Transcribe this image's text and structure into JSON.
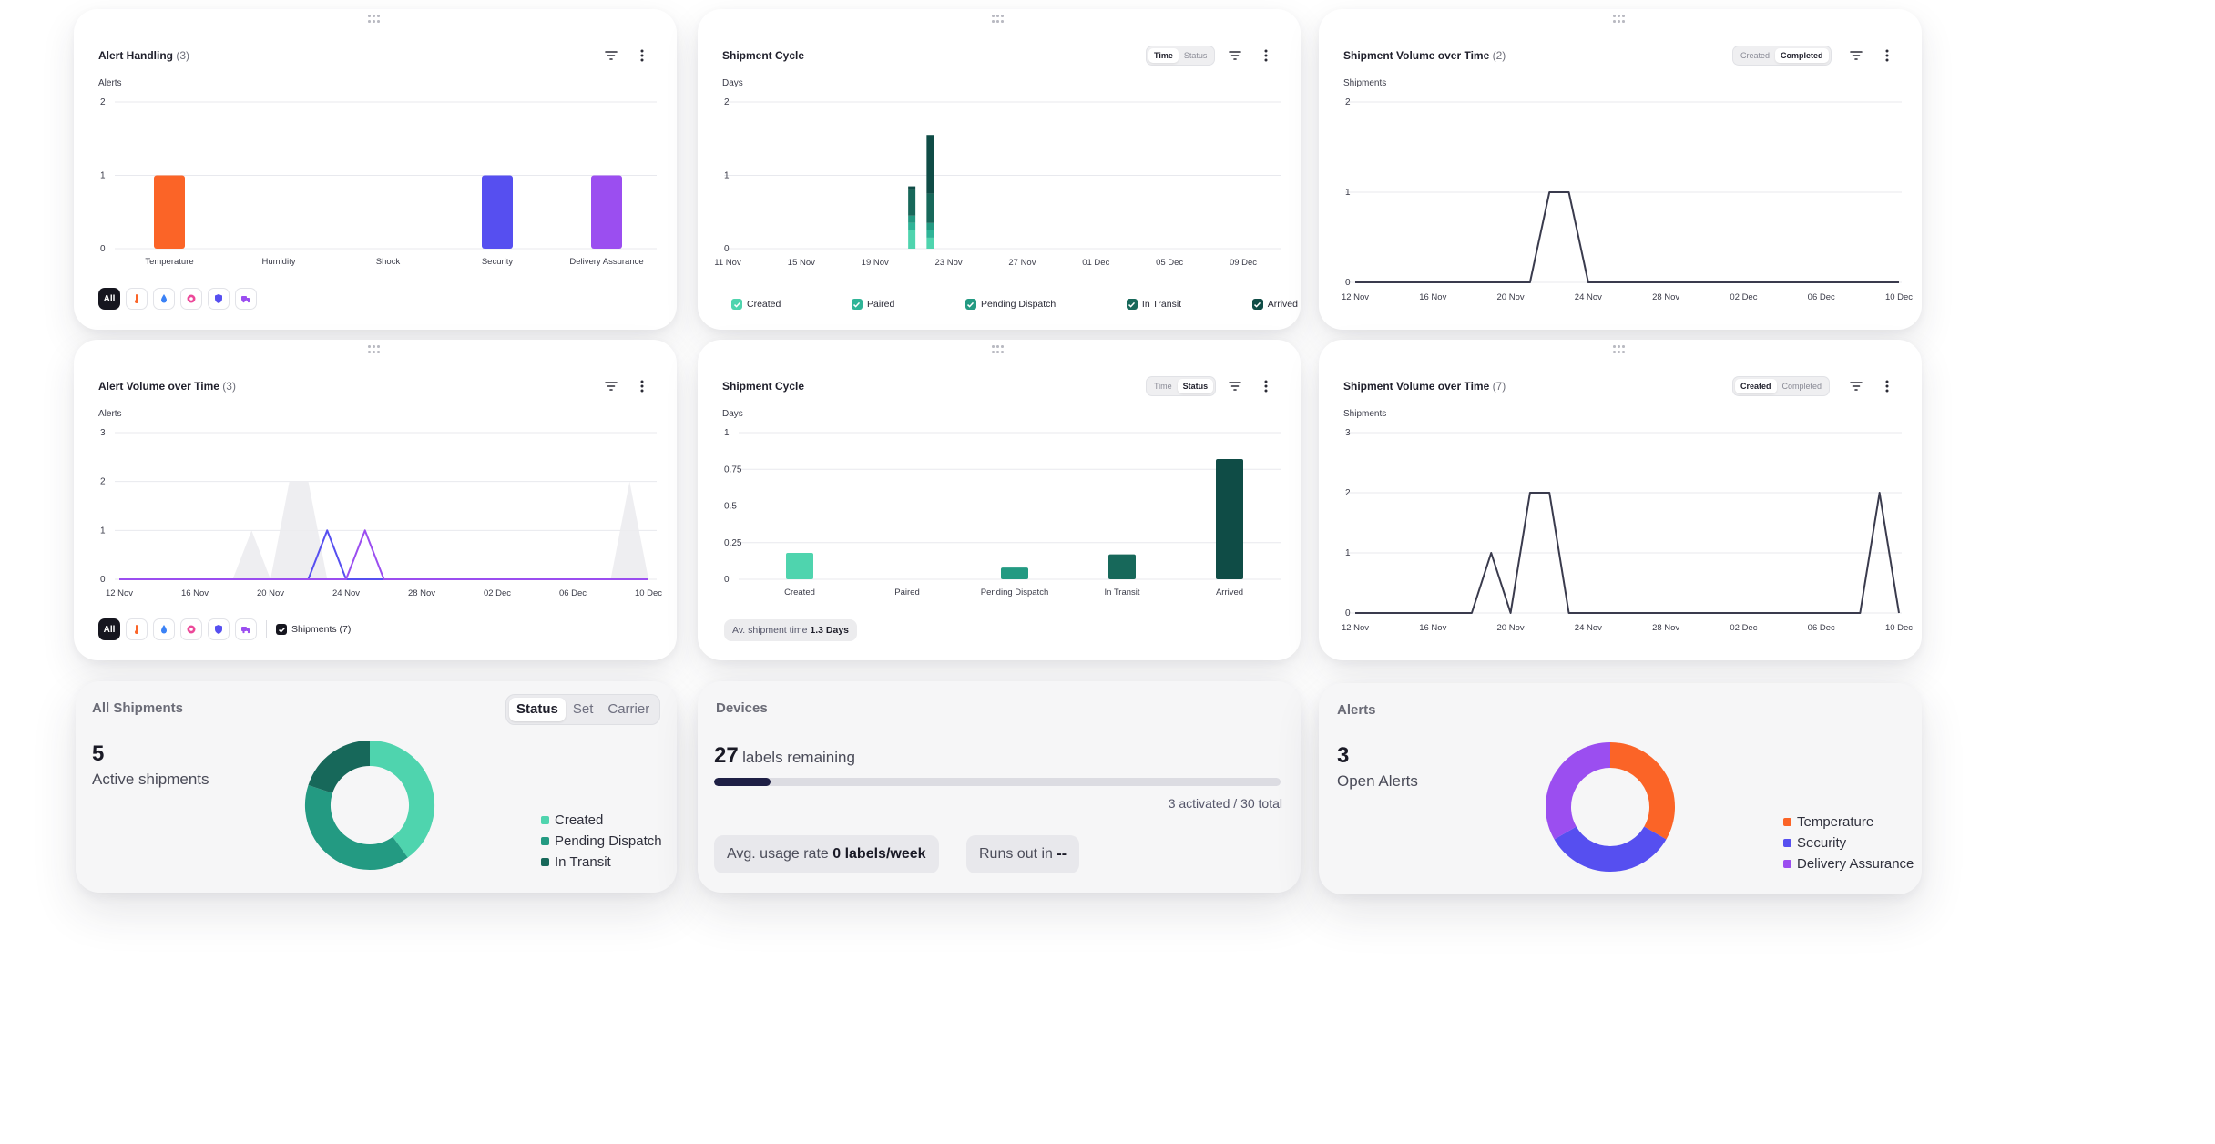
{
  "alert_handling": {
    "title": "Alert Handling",
    "count": "(3)",
    "y_label": "Alerts",
    "filter_all": "All",
    "filter_icons": [
      "thermometer-icon",
      "droplet-icon",
      "shock-icon",
      "shield-icon",
      "delivery-truck-icon"
    ]
  },
  "shipment_cycle_time": {
    "title": "Shipment Cycle",
    "toggle": [
      "Time",
      "Status"
    ],
    "toggle_active": "Time",
    "y_label": "Days",
    "legend": [
      "Created",
      "Paired",
      "Pending Dispatch",
      "In Transit",
      "Arrived"
    ]
  },
  "shipment_volume_completed": {
    "title": "Shipment Volume over Time",
    "count": "(2)",
    "toggle": [
      "Created",
      "Completed"
    ],
    "toggle_active": "Completed",
    "y_label": "Shipments"
  },
  "alert_volume": {
    "title": "Alert Volume over Time",
    "count": "(3)",
    "y_label": "Alerts",
    "filter_all": "All",
    "filter_icons": [
      "thermometer-icon",
      "droplet-icon",
      "shock-icon",
      "shield-icon",
      "delivery-truck-icon"
    ],
    "shipments_toggle": "Shipments (7)"
  },
  "shipment_cycle_status": {
    "title": "Shipment Cycle",
    "toggle": [
      "Time",
      "Status"
    ],
    "toggle_active": "Status",
    "y_label": "Days",
    "avg_label": "Av. shipment time",
    "avg_value": "1.3 Days"
  },
  "shipment_volume_created": {
    "title": "Shipment Volume over Time",
    "count": "(7)",
    "toggle": [
      "Created",
      "Completed"
    ],
    "toggle_active": "Created",
    "y_label": "Shipments"
  },
  "all_shipments": {
    "title": "All Shipments",
    "toggle": [
      "Status",
      "Set",
      "Carrier"
    ],
    "toggle_active": "Status",
    "value": "5",
    "label": "Active shipments",
    "legend": [
      {
        "label": "Created",
        "color": "#4fd4ae"
      },
      {
        "label": "Pending Dispatch",
        "color": "#239a82"
      },
      {
        "label": "In Transit",
        "color": "#17685a"
      }
    ],
    "donut": [
      2,
      2,
      1
    ]
  },
  "devices": {
    "title": "Devices",
    "remaining_value": "27",
    "remaining_label": "labels remaining",
    "progress": 0.1,
    "summary": "3 activated / 30 total",
    "usage_label": "Avg. usage rate",
    "usage_value": "0 labels/week",
    "runs_out_label": "Runs out in",
    "runs_out_value": "--"
  },
  "alerts_kpi": {
    "title": "Alerts",
    "value": "3",
    "label": "Open Alerts",
    "legend": [
      {
        "label": "Temperature",
        "color": "#fb6427"
      },
      {
        "label": "Security",
        "color": "#564ff0"
      },
      {
        "label": "Delivery Assurance",
        "color": "#9b4ef0"
      }
    ],
    "donut": [
      1,
      1,
      1
    ]
  },
  "colors": {
    "temperature": "#fb6427",
    "security": "#564ff0",
    "delivery": "#9b4ef0",
    "created": "#4fd4ae",
    "paired": "#2fb497",
    "pending": "#239a82",
    "transit": "#17685a",
    "arrived": "#0f4c46",
    "line": "#3a3b4d"
  },
  "chart_data": [
    {
      "id": "alert-handling",
      "type": "bar",
      "title": "Alert Handling",
      "ylabel": "Alerts",
      "categories": [
        "Temperature",
        "Humidity",
        "Shock",
        "Security",
        "Delivery Assurance"
      ],
      "values": [
        1,
        0,
        0,
        1,
        1
      ],
      "ylim": [
        0,
        2
      ],
      "yticks": [
        0,
        1,
        2
      ],
      "grid": true
    },
    {
      "id": "shipment-cycle-time",
      "type": "bar",
      "title": "Shipment Cycle",
      "ylabel": "Days",
      "x_ticks": [
        "11 Nov",
        "15 Nov",
        "19 Nov",
        "23 Nov",
        "27 Nov",
        "01 Dec",
        "05 Dec",
        "09 Dec"
      ],
      "ylim": [
        0,
        2
      ],
      "yticks": [
        0,
        1,
        2
      ],
      "grid": true,
      "bars": [
        {
          "date": "2024-11-21",
          "created": 0.25,
          "paired": 0.1,
          "pending": 0.1,
          "in_transit": 0.35,
          "arrived": 0.05
        },
        {
          "date": "2024-11-22",
          "created": 0.15,
          "paired": 0.1,
          "pending": 0.1,
          "in_transit": 0.4,
          "arrived": 0.8
        }
      ],
      "legend": [
        "Created",
        "Paired",
        "Pending Dispatch",
        "In Transit",
        "Arrived"
      ]
    },
    {
      "id": "shipment-volume-completed",
      "type": "line",
      "title": "Shipment Volume over Time",
      "ylabel": "Shipments",
      "x_ticks": [
        "12 Nov",
        "16 Nov",
        "20 Nov",
        "24 Nov",
        "28 Nov",
        "02 Dec",
        "06 Dec",
        "10 Dec"
      ],
      "x": [
        "12 Nov",
        "13 Nov",
        "14 Nov",
        "15 Nov",
        "16 Nov",
        "17 Nov",
        "18 Nov",
        "19 Nov",
        "20 Nov",
        "21 Nov",
        "22 Nov",
        "23 Nov",
        "24 Nov",
        "25 Nov",
        "26 Nov",
        "27 Nov",
        "28 Nov",
        "29 Nov",
        "30 Nov",
        "01 Dec",
        "02 Dec",
        "03 Dec",
        "04 Dec",
        "05 Dec",
        "06 Dec",
        "07 Dec",
        "08 Dec",
        "09 Dec",
        "10 Dec"
      ],
      "values": [
        0,
        0,
        0,
        0,
        0,
        0,
        0,
        0,
        0,
        0,
        1,
        1,
        0,
        0,
        0,
        0,
        0,
        0,
        0,
        0,
        0,
        0,
        0,
        0,
        0,
        0,
        0,
        0,
        0
      ],
      "ylim": [
        0,
        2
      ],
      "yticks": [
        0,
        1,
        2
      ],
      "grid": true
    },
    {
      "id": "alert-volume",
      "type": "line",
      "title": "Alert Volume over Time",
      "ylabel": "Alerts",
      "x_ticks": [
        "12 Nov",
        "16 Nov",
        "20 Nov",
        "24 Nov",
        "28 Nov",
        "02 Dec",
        "06 Dec",
        "10 Dec"
      ],
      "x": [
        "12 Nov",
        "13 Nov",
        "14 Nov",
        "15 Nov",
        "16 Nov",
        "17 Nov",
        "18 Nov",
        "19 Nov",
        "20 Nov",
        "21 Nov",
        "22 Nov",
        "23 Nov",
        "24 Nov",
        "25 Nov",
        "26 Nov",
        "27 Nov",
        "28 Nov",
        "29 Nov",
        "30 Nov",
        "01 Dec",
        "02 Dec",
        "03 Dec",
        "04 Dec",
        "05 Dec",
        "06 Dec",
        "07 Dec",
        "08 Dec",
        "09 Dec",
        "10 Dec"
      ],
      "series": [
        {
          "name": "Security",
          "values": [
            0,
            0,
            0,
            0,
            0,
            0,
            0,
            0,
            0,
            0,
            0,
            1,
            0,
            0,
            0,
            0,
            0,
            0,
            0,
            0,
            0,
            0,
            0,
            0,
            0,
            0,
            0,
            0,
            0
          ]
        },
        {
          "name": "Delivery Assurance",
          "values": [
            0,
            0,
            0,
            0,
            0,
            0,
            0,
            0,
            0,
            0,
            0,
            0,
            0,
            1,
            0,
            0,
            0,
            0,
            0,
            0,
            0,
            0,
            0,
            0,
            0,
            0,
            0,
            0,
            0
          ]
        },
        {
          "name": "Shipments (7)",
          "values": [
            0,
            0,
            0,
            0,
            0,
            0,
            0,
            1,
            0,
            2,
            2,
            0,
            0,
            0,
            0,
            0,
            0,
            0,
            0,
            0,
            0,
            0,
            0,
            0,
            0,
            0,
            0,
            2,
            0
          ]
        }
      ],
      "ylim": [
        0,
        3
      ],
      "yticks": [
        0,
        1,
        2,
        3
      ],
      "grid": true
    },
    {
      "id": "shipment-cycle-status",
      "type": "bar",
      "title": "Shipment Cycle",
      "ylabel": "Days",
      "categories": [
        "Created",
        "Paired",
        "Pending Dispatch",
        "In Transit",
        "Arrived"
      ],
      "values": [
        0.18,
        0,
        0.08,
        0.17,
        0.82
      ],
      "ylim": [
        0,
        1
      ],
      "yticks": [
        0,
        0.25,
        0.5,
        0.75,
        1
      ],
      "grid": true
    },
    {
      "id": "shipment-volume-created",
      "type": "line",
      "title": "Shipment Volume over Time",
      "ylabel": "Shipments",
      "x_ticks": [
        "12 Nov",
        "16 Nov",
        "20 Nov",
        "24 Nov",
        "28 Nov",
        "02 Dec",
        "06 Dec",
        "10 Dec"
      ],
      "x": [
        "12 Nov",
        "13 Nov",
        "14 Nov",
        "15 Nov",
        "16 Nov",
        "17 Nov",
        "18 Nov",
        "19 Nov",
        "20 Nov",
        "21 Nov",
        "22 Nov",
        "23 Nov",
        "24 Nov",
        "25 Nov",
        "26 Nov",
        "27 Nov",
        "28 Nov",
        "29 Nov",
        "30 Nov",
        "01 Dec",
        "02 Dec",
        "03 Dec",
        "04 Dec",
        "05 Dec",
        "06 Dec",
        "07 Dec",
        "08 Dec",
        "09 Dec",
        "10 Dec"
      ],
      "values": [
        0,
        0,
        0,
        0,
        0,
        0,
        0,
        1,
        0,
        2,
        2,
        0,
        0,
        0,
        0,
        0,
        0,
        0,
        0,
        0,
        0,
        0,
        0,
        0,
        0,
        0,
        0,
        2,
        0
      ],
      "ylim": [
        0,
        3
      ],
      "yticks": [
        0,
        1,
        2,
        3
      ],
      "grid": true
    },
    {
      "id": "all-shipments-donut",
      "type": "pie",
      "categories": [
        "Created",
        "Pending Dispatch",
        "In Transit"
      ],
      "values": [
        2,
        2,
        1
      ]
    },
    {
      "id": "alerts-donut",
      "type": "pie",
      "categories": [
        "Temperature",
        "Security",
        "Delivery Assurance"
      ],
      "values": [
        1,
        1,
        1
      ]
    }
  ]
}
